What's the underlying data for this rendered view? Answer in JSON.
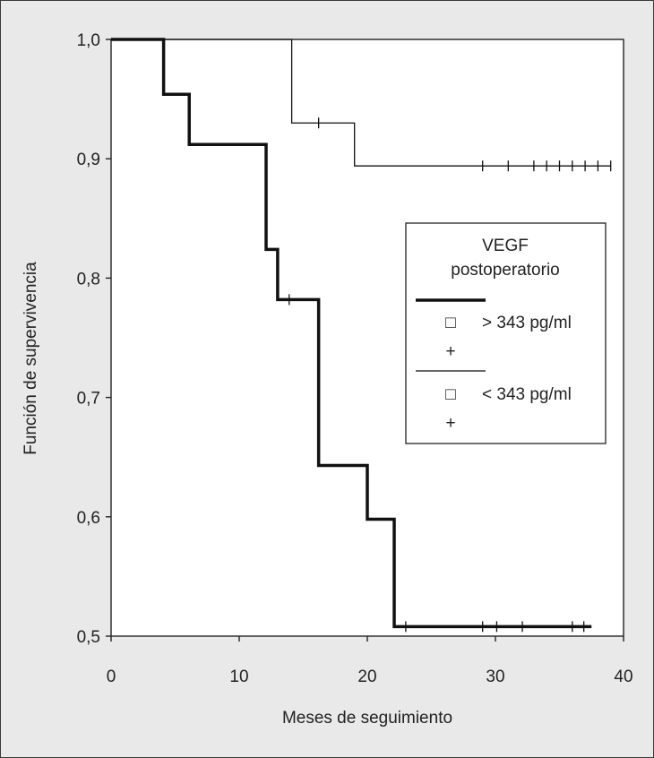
{
  "chart_data": {
    "type": "line",
    "title": "",
    "xlabel": "Meses de seguimiento",
    "ylabel": "Función de supervivencia",
    "xlim": [
      0,
      40
    ],
    "ylim": [
      0.5,
      1.0
    ],
    "x_ticks": [
      0,
      10,
      20,
      30,
      40
    ],
    "x_tick_labels": [
      "0",
      "10",
      "20",
      "30",
      "40"
    ],
    "y_ticks": [
      0.5,
      0.6,
      0.7,
      0.8,
      0.9,
      1.0
    ],
    "y_tick_labels": [
      "0,5",
      "0,6",
      "0,7",
      "0,8",
      "0,9",
      "1,0"
    ],
    "grid": false,
    "legend": {
      "title_line1": "VEGF",
      "title_line2": "postoperatorio",
      "placement": "right",
      "entries": [
        {
          "label": "> 343 pg/ml",
          "square": "□",
          "censor": "+"
        },
        {
          "label": "< 343 pg/ml",
          "square": "□",
          "censor": "+"
        }
      ]
    },
    "series": [
      {
        "name": "> 343 pg/ml",
        "style": "thick",
        "steps": [
          [
            0,
            1.0
          ],
          [
            4.1,
            0.954
          ],
          [
            6.1,
            0.912
          ],
          [
            12.1,
            0.824
          ],
          [
            13.0,
            0.782
          ],
          [
            16.2,
            0.643
          ],
          [
            20.0,
            0.598
          ],
          [
            22.1,
            0.508
          ]
        ],
        "end_x": 37.5,
        "censored": [
          [
            13.9,
            0.782
          ],
          [
            23.0,
            0.508
          ],
          [
            29.0,
            0.508
          ],
          [
            30.1,
            0.508
          ],
          [
            32.1,
            0.508
          ],
          [
            36.0,
            0.508
          ],
          [
            36.9,
            0.508
          ]
        ]
      },
      {
        "name": "< 343 pg/ml",
        "style": "thin",
        "steps": [
          [
            0,
            1.0
          ],
          [
            14.1,
            0.93
          ],
          [
            19.0,
            0.894
          ]
        ],
        "end_x": 39.0,
        "censored": [
          [
            16.2,
            0.93
          ],
          [
            29.0,
            0.894
          ],
          [
            31.0,
            0.894
          ],
          [
            33.0,
            0.894
          ],
          [
            34.0,
            0.894
          ],
          [
            35.0,
            0.894
          ],
          [
            36.0,
            0.894
          ],
          [
            37.0,
            0.894
          ],
          [
            38.0,
            0.894
          ],
          [
            39.0,
            0.894
          ]
        ]
      }
    ]
  }
}
